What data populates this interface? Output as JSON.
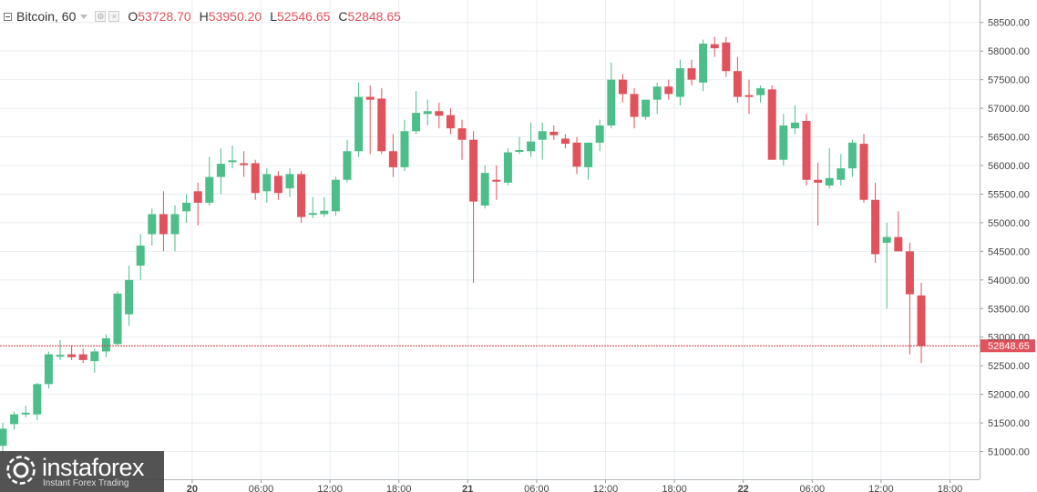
{
  "header": {
    "symbol": "Bitcoin, 60",
    "ohlc": [
      {
        "key": "O",
        "value": "53728.70"
      },
      {
        "key": "H",
        "value": "53950.20"
      },
      {
        "key": "L",
        "value": "52546.65"
      },
      {
        "key": "C",
        "value": "52848.65"
      }
    ]
  },
  "logo": {
    "name": "instaforex",
    "tagline": "Instant Forex Trading"
  },
  "colors": {
    "up": "#4dbe8a",
    "down": "#e0525c",
    "grid": "#e9eef2",
    "axis_text": "#444444",
    "price_line": "#c9343d"
  },
  "chart_data": {
    "type": "candlestick",
    "y_ticks": [
      "58500.00",
      "58000.00",
      "57500.00",
      "57000.00",
      "56500.00",
      "56000.00",
      "55500.00",
      "55000.00",
      "54500.00",
      "54000.00",
      "53500.00",
      "53000.00",
      "52500.00",
      "52000.00",
      "51500.00",
      "51000.00"
    ],
    "ylim": [
      50500,
      58750
    ],
    "x_ticks": [
      {
        "label": "20",
        "bar": 16.5,
        "bold": true
      },
      {
        "label": "06:00",
        "bar": 22.5,
        "bold": false
      },
      {
        "label": "12:00",
        "bar": 28.5,
        "bold": false
      },
      {
        "label": "18:00",
        "bar": 34.5,
        "bold": false
      },
      {
        "label": "21",
        "bar": 40.5,
        "bold": true
      },
      {
        "label": "06:00",
        "bar": 46.5,
        "bold": false
      },
      {
        "label": "12:00",
        "bar": 52.5,
        "bold": false
      },
      {
        "label": "18:00",
        "bar": 58.5,
        "bold": false
      },
      {
        "label": "22",
        "bar": 64.5,
        "bold": true
      },
      {
        "label": "06:00",
        "bar": 70.5,
        "bold": false
      },
      {
        "label": "12:00",
        "bar": 76.5,
        "bold": false
      },
      {
        "label": "18:00",
        "bar": 82.5,
        "bold": false
      }
    ],
    "last_price": "52848.65",
    "last_price_value": 52848.65,
    "candles": [
      {
        "o": 51100,
        "h": 51500,
        "l": 50900,
        "c": 51400
      },
      {
        "o": 51480,
        "h": 51700,
        "l": 51380,
        "c": 51650
      },
      {
        "o": 51650,
        "h": 51800,
        "l": 51600,
        "c": 51680
      },
      {
        "o": 51650,
        "h": 52200,
        "l": 51550,
        "c": 52180
      },
      {
        "o": 52180,
        "h": 52750,
        "l": 52100,
        "c": 52700
      },
      {
        "o": 52670,
        "h": 52950,
        "l": 52600,
        "c": 52690
      },
      {
        "o": 52700,
        "h": 52850,
        "l": 52600,
        "c": 52650
      },
      {
        "o": 52700,
        "h": 52800,
        "l": 52550,
        "c": 52600
      },
      {
        "o": 52580,
        "h": 52800,
        "l": 52380,
        "c": 52750
      },
      {
        "o": 52750,
        "h": 53050,
        "l": 52650,
        "c": 52980
      },
      {
        "o": 52880,
        "h": 53800,
        "l": 52850,
        "c": 53760
      },
      {
        "o": 53400,
        "h": 54250,
        "l": 53200,
        "c": 54000
      },
      {
        "o": 54250,
        "h": 54800,
        "l": 54000,
        "c": 54600
      },
      {
        "o": 54800,
        "h": 55250,
        "l": 54600,
        "c": 55150
      },
      {
        "o": 55150,
        "h": 55550,
        "l": 54500,
        "c": 54800
      },
      {
        "o": 54800,
        "h": 55300,
        "l": 54500,
        "c": 55150
      },
      {
        "o": 55200,
        "h": 55500,
        "l": 55000,
        "c": 55350
      },
      {
        "o": 55550,
        "h": 55700,
        "l": 54950,
        "c": 55350
      },
      {
        "o": 55350,
        "h": 56150,
        "l": 55300,
        "c": 55800
      },
      {
        "o": 55800,
        "h": 56300,
        "l": 55500,
        "c": 56030
      },
      {
        "o": 56080,
        "h": 56350,
        "l": 55950,
        "c": 56090
      },
      {
        "o": 56040,
        "h": 56250,
        "l": 55800,
        "c": 56020
      },
      {
        "o": 56040,
        "h": 56100,
        "l": 55400,
        "c": 55520
      },
      {
        "o": 55550,
        "h": 55950,
        "l": 55350,
        "c": 55850
      },
      {
        "o": 55820,
        "h": 55900,
        "l": 55400,
        "c": 55520
      },
      {
        "o": 55600,
        "h": 55950,
        "l": 55450,
        "c": 55850
      },
      {
        "o": 55850,
        "h": 55900,
        "l": 55000,
        "c": 55100
      },
      {
        "o": 55150,
        "h": 55450,
        "l": 55080,
        "c": 55170
      },
      {
        "o": 55150,
        "h": 55450,
        "l": 55100,
        "c": 55210
      },
      {
        "o": 55200,
        "h": 55800,
        "l": 55120,
        "c": 55750
      },
      {
        "o": 55750,
        "h": 56450,
        "l": 55700,
        "c": 56250
      },
      {
        "o": 56250,
        "h": 57450,
        "l": 56150,
        "c": 57200
      },
      {
        "o": 57200,
        "h": 57400,
        "l": 56200,
        "c": 57150
      },
      {
        "o": 57170,
        "h": 57350,
        "l": 56200,
        "c": 56250
      },
      {
        "o": 56250,
        "h": 56550,
        "l": 55800,
        "c": 55970
      },
      {
        "o": 55970,
        "h": 56800,
        "l": 55900,
        "c": 56600
      },
      {
        "o": 56600,
        "h": 57300,
        "l": 56550,
        "c": 56920
      },
      {
        "o": 56900,
        "h": 57150,
        "l": 56700,
        "c": 56950
      },
      {
        "o": 56950,
        "h": 57100,
        "l": 56650,
        "c": 56870
      },
      {
        "o": 56880,
        "h": 57000,
        "l": 56550,
        "c": 56650
      },
      {
        "o": 56650,
        "h": 56800,
        "l": 56100,
        "c": 56450
      },
      {
        "o": 56450,
        "h": 56600,
        "l": 53950,
        "c": 55370
      },
      {
        "o": 55300,
        "h": 56000,
        "l": 55250,
        "c": 55870
      },
      {
        "o": 55750,
        "h": 56000,
        "l": 55400,
        "c": 55720
      },
      {
        "o": 55700,
        "h": 56300,
        "l": 55650,
        "c": 56230
      },
      {
        "o": 56250,
        "h": 56500,
        "l": 56200,
        "c": 56270
      },
      {
        "o": 56250,
        "h": 56750,
        "l": 56150,
        "c": 56420
      },
      {
        "o": 56450,
        "h": 56750,
        "l": 56100,
        "c": 56600
      },
      {
        "o": 56590,
        "h": 56700,
        "l": 56450,
        "c": 56530
      },
      {
        "o": 56470,
        "h": 56550,
        "l": 56300,
        "c": 56380
      },
      {
        "o": 56400,
        "h": 56500,
        "l": 55850,
        "c": 55980
      },
      {
        "o": 55970,
        "h": 56400,
        "l": 55750,
        "c": 56400
      },
      {
        "o": 56400,
        "h": 56800,
        "l": 56250,
        "c": 56700
      },
      {
        "o": 56700,
        "h": 57800,
        "l": 56650,
        "c": 57500
      },
      {
        "o": 57500,
        "h": 57600,
        "l": 57100,
        "c": 57250
      },
      {
        "o": 57250,
        "h": 57350,
        "l": 56650,
        "c": 56850
      },
      {
        "o": 56850,
        "h": 57150,
        "l": 56800,
        "c": 57150
      },
      {
        "o": 57150,
        "h": 57450,
        "l": 56900,
        "c": 57380
      },
      {
        "o": 57380,
        "h": 57500,
        "l": 57150,
        "c": 57250
      },
      {
        "o": 57200,
        "h": 57850,
        "l": 57050,
        "c": 57700
      },
      {
        "o": 57700,
        "h": 57850,
        "l": 57400,
        "c": 57500
      },
      {
        "o": 57450,
        "h": 58200,
        "l": 57300,
        "c": 58130
      },
      {
        "o": 58120,
        "h": 58250,
        "l": 57900,
        "c": 58050
      },
      {
        "o": 58150,
        "h": 58250,
        "l": 57550,
        "c": 57650
      },
      {
        "o": 57650,
        "h": 57900,
        "l": 57100,
        "c": 57200
      },
      {
        "o": 57230,
        "h": 57500,
        "l": 56900,
        "c": 57210
      },
      {
        "o": 57230,
        "h": 57400,
        "l": 57100,
        "c": 57350
      },
      {
        "o": 57330,
        "h": 57400,
        "l": 56100,
        "c": 56100
      },
      {
        "o": 56100,
        "h": 56900,
        "l": 56000,
        "c": 56700
      },
      {
        "o": 56650,
        "h": 57050,
        "l": 56550,
        "c": 56750
      },
      {
        "o": 56780,
        "h": 56900,
        "l": 55650,
        "c": 55750
      },
      {
        "o": 55750,
        "h": 56050,
        "l": 54950,
        "c": 55700
      },
      {
        "o": 55650,
        "h": 56300,
        "l": 55600,
        "c": 55780
      },
      {
        "o": 55750,
        "h": 56200,
        "l": 55650,
        "c": 55950
      },
      {
        "o": 55950,
        "h": 56450,
        "l": 55800,
        "c": 56400
      },
      {
        "o": 56380,
        "h": 56550,
        "l": 55350,
        "c": 55400
      },
      {
        "o": 55400,
        "h": 55700,
        "l": 54300,
        "c": 54450
      },
      {
        "o": 54650,
        "h": 55000,
        "l": 53500,
        "c": 54750
      },
      {
        "o": 54750,
        "h": 55200,
        "l": 54500,
        "c": 54500
      },
      {
        "o": 54500,
        "h": 54650,
        "l": 52700,
        "c": 53750
      },
      {
        "o": 53728.7,
        "h": 53950.2,
        "l": 52546.65,
        "c": 52848.65
      }
    ]
  }
}
